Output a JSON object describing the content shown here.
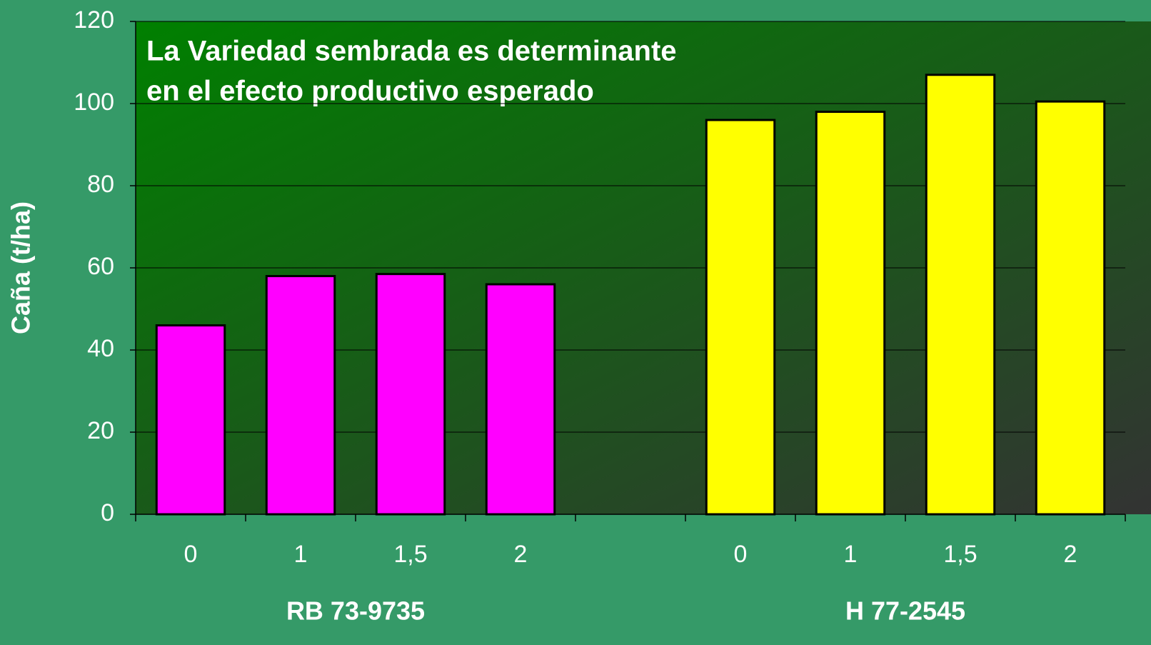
{
  "chart_data": {
    "type": "bar",
    "annotation": [
      "La Variedad sembrada es determinante",
      "en el  efecto productivo esperado"
    ],
    "ylabel": "Caña (t/ha)",
    "categories": [
      "0",
      "1",
      "1,5",
      "2",
      null,
      "0",
      "1",
      "1,5",
      "2"
    ],
    "values": [
      46,
      58,
      58.5,
      56,
      null,
      96,
      98,
      107,
      100.5
    ],
    "colors": [
      "#ff00ff",
      "#ff00ff",
      "#ff00ff",
      "#ff00ff",
      null,
      "#ffff00",
      "#ffff00",
      "#ffff00",
      "#ffff00"
    ],
    "group_labels": [
      "RB 73-9735",
      "H 77-2545"
    ],
    "ylim": [
      0,
      120
    ],
    "yticks": [
      0,
      20,
      40,
      60,
      80,
      100,
      120
    ],
    "grid": true
  }
}
